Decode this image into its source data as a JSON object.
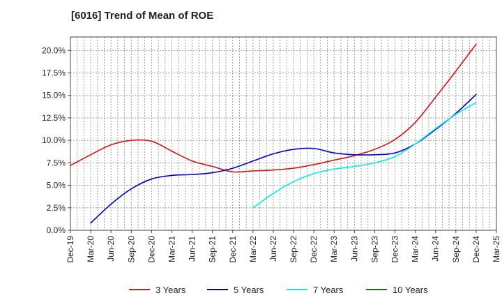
{
  "chart_data": {
    "type": "line",
    "title": "[6016]  Trend of Mean of ROE",
    "xlabel": "",
    "ylabel": "",
    "x_ticks": [
      "Dec-19",
      "Mar-20",
      "Jun-20",
      "Sep-20",
      "Dec-20",
      "Mar-21",
      "Jun-21",
      "Sep-21",
      "Dec-21",
      "Mar-22",
      "Jun-22",
      "Sep-22",
      "Dec-22",
      "Mar-23",
      "Jun-23",
      "Sep-23",
      "Dec-23",
      "Mar-24",
      "Jun-24",
      "Sep-24",
      "Dec-24",
      "Mar-25"
    ],
    "y_ticks": [
      "0.0%",
      "2.5%",
      "5.0%",
      "7.5%",
      "10.0%",
      "12.5%",
      "15.0%",
      "17.5%",
      "20.0%"
    ],
    "ylim": [
      0,
      21.5
    ],
    "grid": true,
    "legend_position": "bottom",
    "series": [
      {
        "name": "3 Years",
        "color": "#dd1111",
        "values": [
          7.2,
          8.4,
          9.5,
          10.0,
          9.9,
          8.8,
          7.7,
          7.1,
          6.5,
          6.6,
          6.7,
          6.9,
          7.3,
          7.8,
          8.3,
          9.0,
          10.1,
          12.0,
          14.8,
          17.7,
          20.7,
          null
        ]
      },
      {
        "name": "5 Years",
        "color": "#0000cc",
        "values": [
          null,
          0.8,
          2.9,
          4.6,
          5.7,
          6.1,
          6.2,
          6.4,
          6.9,
          7.7,
          8.5,
          9.0,
          9.1,
          8.6,
          8.4,
          8.4,
          8.6,
          9.6,
          11.2,
          13.0,
          15.1,
          null
        ]
      },
      {
        "name": "7 Years",
        "color": "#00eeee",
        "values": [
          null,
          null,
          null,
          null,
          null,
          null,
          null,
          null,
          null,
          2.5,
          4.1,
          5.4,
          6.3,
          6.8,
          7.1,
          7.5,
          8.2,
          9.6,
          11.3,
          12.9,
          14.2,
          null
        ]
      },
      {
        "name": "10 Years",
        "color": "#008000",
        "values": [
          null,
          null,
          null,
          null,
          null,
          null,
          null,
          null,
          null,
          null,
          null,
          null,
          null,
          null,
          null,
          null,
          null,
          null,
          null,
          null,
          null,
          null
        ]
      }
    ]
  }
}
